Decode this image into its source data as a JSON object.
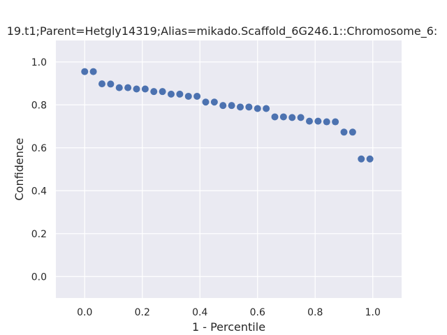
{
  "chart_data": {
    "type": "scatter",
    "title": "19.t1;Parent=Hetgly14319;Alias=mikado.Scaffold_6G246.1::Chromosome_6:",
    "xlabel": "1 - Percentile",
    "ylabel": "Confidence",
    "xlim": [
      -0.1,
      1.1
    ],
    "ylim": [
      -0.1,
      1.1
    ],
    "xticks": [
      0.0,
      0.2,
      0.4,
      0.6,
      0.8,
      1.0
    ],
    "xtick_labels": [
      "0.0",
      "0.2",
      "0.4",
      "0.6",
      "0.8",
      "1.0"
    ],
    "yticks": [
      0.0,
      0.2,
      0.4,
      0.6,
      0.8,
      1.0
    ],
    "ytick_labels": [
      "0.0",
      "0.2",
      "0.4",
      "0.6",
      "0.8",
      "1.0"
    ],
    "grid": true,
    "colors": {
      "background": "#eaeaf2",
      "grid": "#ffffff",
      "marker": "#4c72b0"
    },
    "points": [
      {
        "x": 0.0,
        "y": 0.955
      },
      {
        "x": 0.03,
        "y": 0.955
      },
      {
        "x": 0.06,
        "y": 0.898
      },
      {
        "x": 0.09,
        "y": 0.897
      },
      {
        "x": 0.12,
        "y": 0.88
      },
      {
        "x": 0.15,
        "y": 0.88
      },
      {
        "x": 0.18,
        "y": 0.874
      },
      {
        "x": 0.21,
        "y": 0.874
      },
      {
        "x": 0.24,
        "y": 0.862
      },
      {
        "x": 0.27,
        "y": 0.862
      },
      {
        "x": 0.3,
        "y": 0.85
      },
      {
        "x": 0.33,
        "y": 0.85
      },
      {
        "x": 0.36,
        "y": 0.84
      },
      {
        "x": 0.39,
        "y": 0.84
      },
      {
        "x": 0.42,
        "y": 0.813
      },
      {
        "x": 0.45,
        "y": 0.813
      },
      {
        "x": 0.48,
        "y": 0.797
      },
      {
        "x": 0.51,
        "y": 0.797
      },
      {
        "x": 0.54,
        "y": 0.79
      },
      {
        "x": 0.57,
        "y": 0.79
      },
      {
        "x": 0.6,
        "y": 0.783
      },
      {
        "x": 0.63,
        "y": 0.783
      },
      {
        "x": 0.66,
        "y": 0.744
      },
      {
        "x": 0.69,
        "y": 0.744
      },
      {
        "x": 0.72,
        "y": 0.741
      },
      {
        "x": 0.75,
        "y": 0.741
      },
      {
        "x": 0.78,
        "y": 0.724
      },
      {
        "x": 0.81,
        "y": 0.724
      },
      {
        "x": 0.84,
        "y": 0.721
      },
      {
        "x": 0.87,
        "y": 0.721
      },
      {
        "x": 0.9,
        "y": 0.673
      },
      {
        "x": 0.93,
        "y": 0.673
      },
      {
        "x": 0.96,
        "y": 0.548
      },
      {
        "x": 0.99,
        "y": 0.548
      }
    ]
  }
}
